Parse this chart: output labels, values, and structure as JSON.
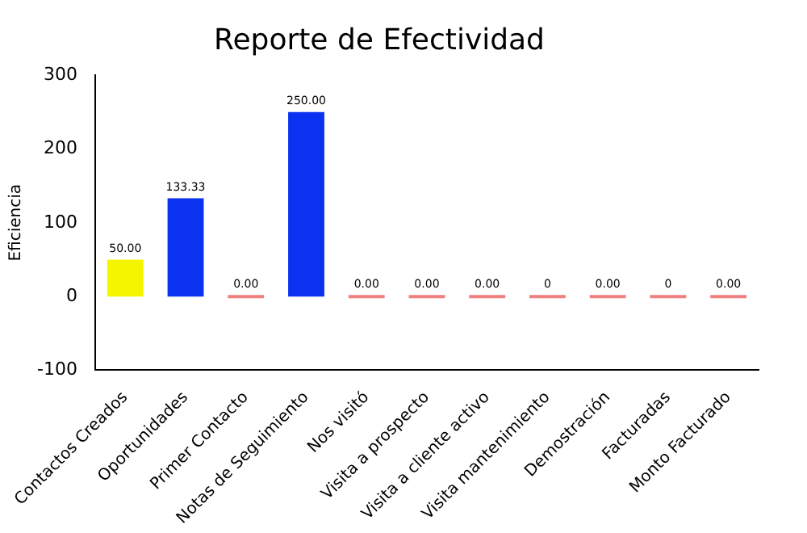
{
  "chart_data": {
    "type": "bar",
    "title": "Reporte de Efectividad",
    "ylabel": "Eficiencia",
    "categories": [
      "Contactos Creados",
      "Oportunidades",
      "Primer Contacto",
      "Notas de Seguimiento",
      "Nos visitó",
      "Visita a prospecto",
      "Visita a cliente activo",
      "Visita mantenimiento",
      "Demostración",
      "Facturadas",
      "Monto Facturado"
    ],
    "values": [
      50,
      133.33,
      0,
      250,
      0,
      0,
      0,
      0,
      0,
      0,
      0
    ],
    "value_labels": [
      "50.00",
      "133.33",
      "0.00",
      "250.00",
      "0.00",
      "0.00",
      "0.00",
      "0",
      "0.00",
      "0",
      "0.00"
    ],
    "colors": [
      "#f5f500",
      "#0a32f0",
      "#f08080",
      "#0a32f0",
      "#f08080",
      "#f08080",
      "#f08080",
      "#f08080",
      "#f08080",
      "#f08080",
      "#f08080"
    ],
    "ylim": [
      -100,
      300
    ],
    "yticks": [
      -100,
      0,
      100,
      200,
      300
    ],
    "grid": false,
    "legend": false
  }
}
